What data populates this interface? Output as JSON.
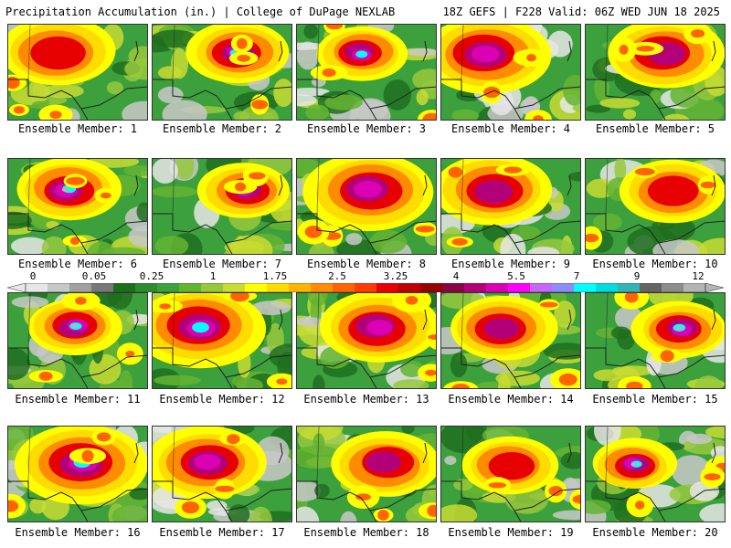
{
  "header": {
    "left_title": "Precipitation Accumulation (in.) | College of DuPage NEXLAB",
    "right_title": "18Z GEFS | F228 Valid: 06Z WED JUN 18 2025"
  },
  "panels": [
    {
      "label": "Ensemble Member: 1"
    },
    {
      "label": "Ensemble Member: 2"
    },
    {
      "label": "Ensemble Member: 3"
    },
    {
      "label": "Ensemble Member: 4"
    },
    {
      "label": "Ensemble Member: 5"
    },
    {
      "label": "Ensemble Member: 6"
    },
    {
      "label": "Ensemble Member: 7"
    },
    {
      "label": "Ensemble Member: 8"
    },
    {
      "label": "Ensemble Member: 9"
    },
    {
      "label": "Ensemble Member: 10"
    },
    {
      "label": "Ensemble Member: 11"
    },
    {
      "label": "Ensemble Member: 12"
    },
    {
      "label": "Ensemble Member: 13"
    },
    {
      "label": "Ensemble Member: 14"
    },
    {
      "label": "Ensemble Member: 15"
    },
    {
      "label": "Ensemble Member: 16"
    },
    {
      "label": "Ensemble Member: 17"
    },
    {
      "label": "Ensemble Member: 18"
    },
    {
      "label": "Ensemble Member: 19"
    },
    {
      "label": "Ensemble Member: 20"
    }
  ],
  "colorbar": {
    "labels": [
      "0",
      "0.05",
      "0.25",
      "1",
      "1.75",
      "2.5",
      "3.25",
      "4",
      "5.5",
      "7",
      "9",
      "12"
    ],
    "colors": [
      "#e6e6e6",
      "#c8c8c8",
      "#a0a0a0",
      "#787878",
      "#1e6e1e",
      "#2d8c2d",
      "#3ca03c",
      "#64b432",
      "#96c83c",
      "#c8dc32",
      "#ffff00",
      "#ffdc00",
      "#ffb400",
      "#ff8c00",
      "#ff6400",
      "#ff3c00",
      "#e60000",
      "#be0000",
      "#960000",
      "#8c0046",
      "#b40078",
      "#dc00b4",
      "#ff00ff",
      "#c864ff",
      "#8c8cff",
      "#00ffff",
      "#00dcdc",
      "#32b4b4",
      "#646464",
      "#8c8c8c",
      "#b4b4b4"
    ]
  }
}
